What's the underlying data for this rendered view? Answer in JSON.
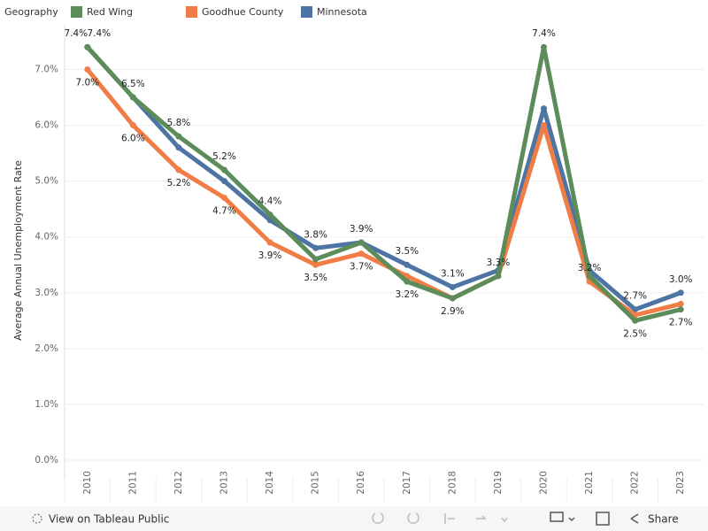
{
  "chart_data": {
    "type": "line",
    "legend_title": "Geography",
    "y_label": "Average Annual Unemployment Rate",
    "categories": [
      "2010",
      "2011",
      "2012",
      "2013",
      "2014",
      "2015",
      "2016",
      "2017",
      "2018",
      "2019",
      "2020",
      "2021",
      "2022",
      "2023"
    ],
    "series": [
      {
        "name": "Red Wing",
        "color": "#5b8c5a",
        "values": [
          7.4,
          6.5,
          5.8,
          5.2,
          4.4,
          3.6,
          3.9,
          3.2,
          2.9,
          3.3,
          7.4,
          3.3,
          2.5,
          2.7
        ],
        "value_labels": [
          "7.4%",
          "6.5%",
          "5.8%",
          "5.2%",
          "4.4%",
          null,
          "3.9%",
          "3.2%",
          null,
          "3.3%",
          "7.4%",
          null,
          "2.5%",
          "2.7%"
        ]
      },
      {
        "name": "Goodhue County",
        "color": "#f07d45",
        "values": [
          7.0,
          6.0,
          5.2,
          4.7,
          3.9,
          3.5,
          3.7,
          3.3,
          2.9,
          3.3,
          6.0,
          3.2,
          2.6,
          2.8
        ],
        "value_labels": [
          "7.0%",
          "6.0%",
          "5.2%",
          "4.7%",
          "3.9%",
          "3.5%",
          "3.7%",
          null,
          "2.9%",
          null,
          null,
          "3.2%",
          null,
          null
        ]
      },
      {
        "name": "Minnesota",
        "color": "#4e74a4",
        "values": [
          7.4,
          6.5,
          5.6,
          5.0,
          4.3,
          3.8,
          3.9,
          3.5,
          3.1,
          3.4,
          6.3,
          3.4,
          2.7,
          3.0
        ],
        "value_labels": [
          "7.4%",
          null,
          null,
          null,
          null,
          "3.8%",
          null,
          "3.5%",
          "3.1%",
          null,
          null,
          null,
          "2.7%",
          "3.0%"
        ]
      }
    ],
    "ylim": [
      0,
      7.8
    ],
    "yticks": [
      {
        "value": 0,
        "label": "0.0%"
      },
      {
        "value": 1,
        "label": "1.0%"
      },
      {
        "value": 2,
        "label": "2.0%"
      },
      {
        "value": 3,
        "label": "3.0%"
      },
      {
        "value": 4,
        "label": "4.0%"
      },
      {
        "value": 5,
        "label": "5.0%"
      },
      {
        "value": 6,
        "label": "6.0%"
      },
      {
        "value": 7,
        "label": "7.0%"
      }
    ],
    "grid": true
  },
  "toolbar": {
    "view_link": "View on Tableau Public",
    "share": "Share"
  }
}
